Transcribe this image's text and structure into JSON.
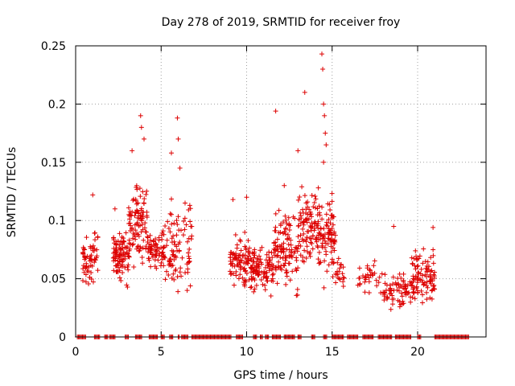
{
  "chart_data": {
    "type": "scatter",
    "title": "Day 278 of 2019, SRMTID for receiver froy",
    "xlabel": "GPS time / hours",
    "ylabel": "SRMTID / TECUs",
    "xlim": [
      0,
      24
    ],
    "ylim": [
      0,
      0.25
    ],
    "x_ticks": [
      0,
      5,
      10,
      15,
      20
    ],
    "x_tick_labels": [
      "0",
      "5",
      "10",
      "15",
      "20"
    ],
    "y_ticks": [
      0,
      0.05,
      0.1,
      0.15,
      0.2,
      0.25
    ],
    "y_tick_labels": [
      "0",
      "0.05",
      "0.1",
      "0.15",
      "0.2",
      "0.25"
    ],
    "grid": true,
    "legend": "none",
    "marker": "+",
    "color": "#dd0000",
    "series": [
      {
        "name": "SRMTID",
        "clusters": [
          {
            "x_range": [
              0.4,
              1.3
            ],
            "y_range": [
              0.03,
              0.1
            ],
            "count": 60
          },
          {
            "x_range": [
              2.2,
              3.1
            ],
            "y_range": [
              0.04,
              0.1
            ],
            "count": 90
          },
          {
            "x_range": [
              3.1,
              4.2
            ],
            "y_range": [
              0.05,
              0.15
            ],
            "count": 100
          },
          {
            "x_range": [
              4.2,
              5.2
            ],
            "y_range": [
              0.05,
              0.1
            ],
            "count": 70
          },
          {
            "x_range": [
              5.2,
              6.8
            ],
            "y_range": [
              0.03,
              0.13
            ],
            "count": 90
          },
          {
            "x_range": [
              9.0,
              10.2
            ],
            "y_range": [
              0.03,
              0.1
            ],
            "count": 90
          },
          {
            "x_range": [
              10.2,
              11.6
            ],
            "y_range": [
              0.03,
              0.085
            ],
            "count": 100
          },
          {
            "x_range": [
              11.6,
              13.0
            ],
            "y_range": [
              0.03,
              0.12
            ],
            "count": 110
          },
          {
            "x_range": [
              13.0,
              14.2
            ],
            "y_range": [
              0.05,
              0.14
            ],
            "count": 100
          },
          {
            "x_range": [
              14.2,
              15.2
            ],
            "y_range": [
              0.04,
              0.13
            ],
            "count": 90
          },
          {
            "x_range": [
              15.2,
              15.7
            ],
            "y_range": [
              0.04,
              0.07
            ],
            "count": 20
          },
          {
            "x_range": [
              16.5,
              18.0
            ],
            "y_range": [
              0.03,
              0.07
            ],
            "count": 35
          },
          {
            "x_range": [
              18.0,
              19.6
            ],
            "y_range": [
              0.02,
              0.06
            ],
            "count": 70
          },
          {
            "x_range": [
              19.6,
              21.0
            ],
            "y_range": [
              0.02,
              0.085
            ],
            "count": 100
          }
        ],
        "spikes": [
          {
            "x": 3.8,
            "y": 0.19
          },
          {
            "x": 3.85,
            "y": 0.18
          },
          {
            "x": 3.3,
            "y": 0.16
          },
          {
            "x": 5.6,
            "y": 0.158
          },
          {
            "x": 5.95,
            "y": 0.188
          },
          {
            "x": 6.0,
            "y": 0.17
          },
          {
            "x": 6.1,
            "y": 0.145
          },
          {
            "x": 11.7,
            "y": 0.194
          },
          {
            "x": 12.2,
            "y": 0.13
          },
          {
            "x": 13.0,
            "y": 0.16
          },
          {
            "x": 13.4,
            "y": 0.21
          },
          {
            "x": 14.4,
            "y": 0.243
          },
          {
            "x": 14.45,
            "y": 0.23
          },
          {
            "x": 14.5,
            "y": 0.2
          },
          {
            "x": 14.55,
            "y": 0.19
          },
          {
            "x": 14.6,
            "y": 0.175
          },
          {
            "x": 14.65,
            "y": 0.165
          },
          {
            "x": 14.5,
            "y": 0.15
          },
          {
            "x": 10.0,
            "y": 0.12
          },
          {
            "x": 9.2,
            "y": 0.118
          },
          {
            "x": 18.6,
            "y": 0.095
          },
          {
            "x": 20.9,
            "y": 0.094
          },
          {
            "x": 2.3,
            "y": 0.11
          },
          {
            "x": 1.0,
            "y": 0.122
          },
          {
            "x": 4.0,
            "y": 0.17
          },
          {
            "x": 6.4,
            "y": 0.115
          }
        ],
        "zero_segments": [
          [
            0.1,
            0.6
          ],
          [
            1.1,
            1.4
          ],
          [
            1.7,
            1.9
          ],
          [
            2.0,
            2.3
          ],
          [
            2.9,
            3.1
          ],
          [
            3.5,
            3.9
          ],
          [
            4.3,
            4.8
          ],
          [
            5.0,
            5.2
          ],
          [
            5.5,
            5.7
          ],
          [
            6.0,
            6.1
          ],
          [
            6.2,
            6.6
          ],
          [
            6.8,
            9.1
          ],
          [
            9.4,
            9.8
          ],
          [
            10.4,
            10.6
          ],
          [
            10.8,
            10.95
          ],
          [
            11.1,
            11.3
          ],
          [
            11.5,
            12.0
          ],
          [
            12.2,
            12.8
          ],
          [
            13.0,
            13.2
          ],
          [
            13.8,
            14.0
          ],
          [
            14.5,
            14.7
          ],
          [
            15.0,
            15.7
          ],
          [
            15.9,
            16.5
          ],
          [
            16.8,
            17.4
          ],
          [
            17.7,
            18.5
          ],
          [
            18.7,
            19.6
          ],
          [
            20.0,
            20.2
          ],
          [
            21.0,
            23.0
          ]
        ]
      }
    ]
  }
}
